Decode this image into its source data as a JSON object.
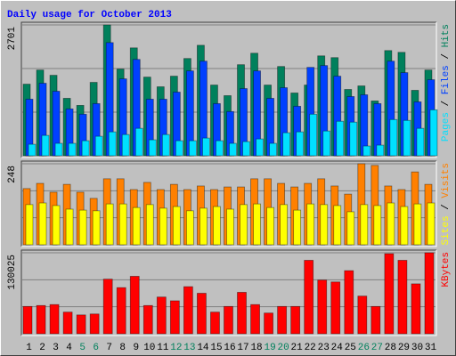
{
  "chart_data": {
    "type": "bar",
    "title": "Daily usage for October 2013",
    "categories": [
      "1",
      "2",
      "3",
      "4",
      "5",
      "6",
      "7",
      "8",
      "9",
      "10",
      "11",
      "12",
      "13",
      "14",
      "15",
      "16",
      "17",
      "18",
      "19",
      "20",
      "21",
      "22",
      "23",
      "24",
      "25",
      "26",
      "27",
      "28",
      "29",
      "30",
      "31"
    ],
    "category_colors": [
      "#000000",
      "#000000",
      "#000000",
      "#000000",
      "#00805c",
      "#00805c",
      "#000000",
      "#000000",
      "#000000",
      "#000000",
      "#000000",
      "#00805c",
      "#00805c",
      "#000000",
      "#000000",
      "#000000",
      "#000000",
      "#000000",
      "#00805c",
      "#00805c",
      "#000000",
      "#000000",
      "#000000",
      "#000000",
      "#000000",
      "#00805c",
      "#00805c",
      "#000000",
      "#000000",
      "#000000",
      "#000000"
    ],
    "legend_separator": " / ",
    "grid": true,
    "panels": [
      {
        "ylim": [
          0,
          2701
        ],
        "yticks": [
          2701
        ],
        "series": [
          {
            "name": "Pages",
            "color": "#00e0ff",
            "values": [
              237,
              420,
              256,
              256,
              310,
              402,
              493,
              438,
              566,
              329,
              438,
              310,
              310,
              365,
              310,
              256,
              292,
              347,
              256,
              475,
              493,
              858,
              511,
              712,
              694,
              201,
              219,
              748,
              730,
              566,
              949
            ]
          },
          {
            "name": "Files",
            "color": "#0040ff",
            "values": [
              1168,
              1497,
              1332,
              967,
              858,
              1077,
              2336,
              1588,
              1989,
              1168,
              1168,
              1314,
              1752,
              1953,
              1077,
              913,
              1387,
              1752,
              1186,
              1405,
              1022,
              1825,
              1862,
              1643,
              1223,
              1259,
              1077,
              1953,
              1716,
              1113,
              1570
            ]
          },
          {
            "name": "Hits",
            "color": "#00805c",
            "values": [
              1478,
              1770,
              1661,
              1186,
              1040,
              1515,
              2701,
              1789,
              2227,
              1624,
              1424,
              1643,
              2008,
              2281,
              1460,
              1241,
              1880,
              2117,
              1460,
              1843,
              1296,
              1460,
              2062,
              2026,
              1369,
              1442,
              1132,
              2172,
              2135,
              1351,
              1770
            ]
          }
        ]
      },
      {
        "ylim": [
          0,
          248
        ],
        "yticks": [
          248
        ],
        "series": [
          {
            "name": "Sites",
            "color": "#ffff00",
            "values": [
              123,
              128,
              120,
              109,
              106,
              104,
              125,
              125,
              114,
              123,
              112,
              117,
              104,
              112,
              117,
              109,
              123,
              125,
              114,
              123,
              106,
              125,
              123,
              120,
              101,
              123,
              120,
              128,
              117,
              125,
              128
            ]
          },
          {
            "name": "Visits",
            "color": "#ff8000",
            "values": [
              172,
              188,
              161,
              185,
              161,
              142,
              202,
              202,
              169,
              191,
              169,
              185,
              169,
              180,
              169,
              177,
              177,
              202,
              202,
              188,
              177,
              188,
              202,
              180,
              155,
              248,
              243,
              180,
              169,
              223,
              185
            ]
          }
        ]
      },
      {
        "ylim": [
          0,
          130025
        ],
        "yticks": [
          130025
        ],
        "series": [
          {
            "name": "KBytes",
            "color": "#ff0000",
            "values": [
              43848,
              45360,
              46872,
              34776,
              30240,
              31752,
              87696,
              74088,
              92232,
              45360,
              58968,
              52920,
              75600,
              65016,
              34776,
              43848,
              66528,
              46872,
              33264,
              43848,
              43848,
              117936,
              86184,
              83160,
              101304,
              60480,
              43848,
              128520,
              117936,
              80136,
              130025
            ]
          }
        ]
      }
    ]
  }
}
